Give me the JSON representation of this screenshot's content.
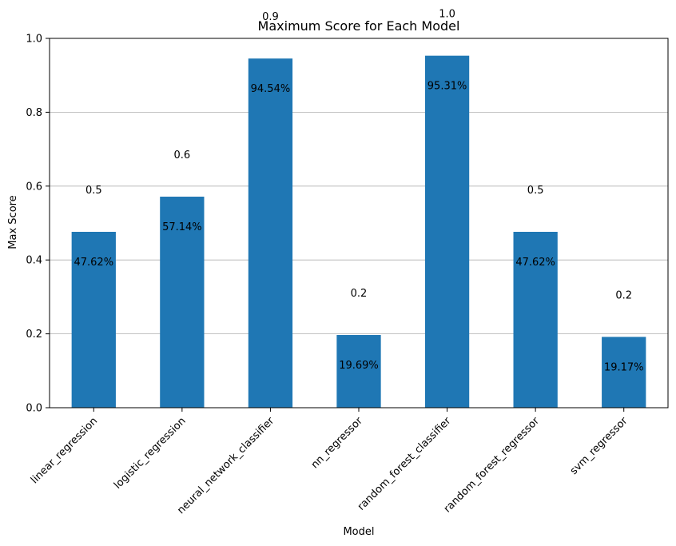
{
  "chart_data": {
    "type": "bar",
    "title": "Maximum Score for Each Model",
    "xlabel": "Model",
    "ylabel": "Max Score",
    "categories": [
      "linear_regression",
      "logistic_regression",
      "neural_network_classifier",
      "nn_regressor",
      "random_forest_classifier",
      "random_forest_regressor",
      "svm_regressor"
    ],
    "values": [
      0.4762,
      0.5714,
      0.9454,
      0.1969,
      0.9531,
      0.4762,
      0.1917
    ],
    "value_labels": [
      "47.62%",
      "57.14%",
      "94.54%",
      "19.69%",
      "95.31%",
      "47.62%",
      "19.17%"
    ],
    "rounded_labels": [
      "0.5",
      "0.6",
      "0.9",
      "0.2",
      "1.0",
      "0.5",
      "0.2"
    ],
    "ylim": [
      0,
      1.0
    ],
    "yticks": [
      "0.0",
      "0.2",
      "0.4",
      "0.6",
      "0.8",
      "1.0"
    ],
    "grid": "y",
    "bar_color": "#1f77b4"
  }
}
